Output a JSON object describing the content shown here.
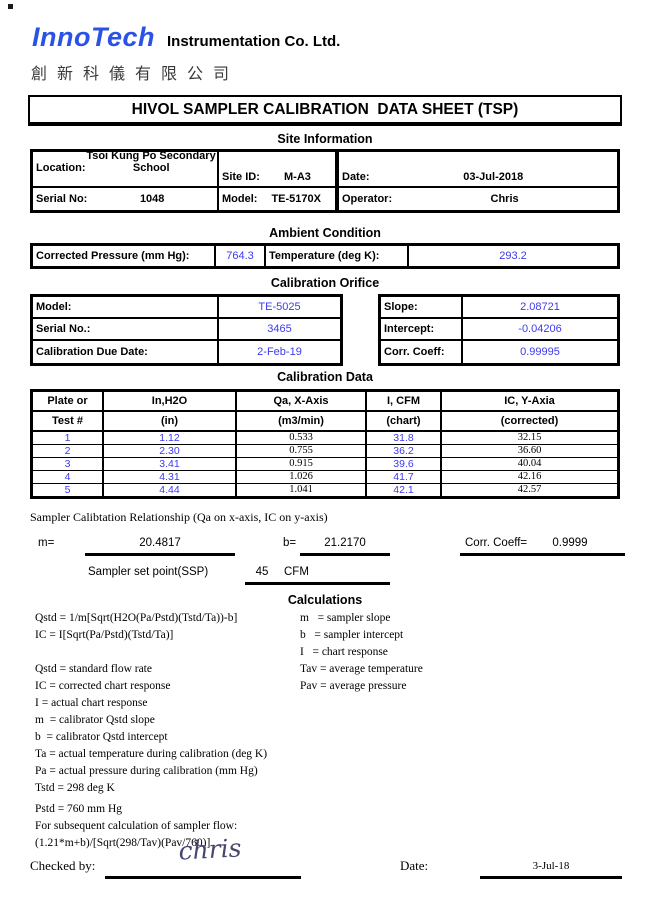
{
  "header": {
    "logo_text": "InnoTech",
    "company_name": "Instrumentation Co. Ltd.",
    "company_name_zh": "創新科儀有限公司",
    "sheet_title": "HIVOL SAMPLER CALIBRATION  DATA SHEET (TSP)"
  },
  "site_information": {
    "section_title": "Site Information",
    "location_label": "Location:",
    "location_value_line1": "Tsoi Kung Po Secondary",
    "location_value_line2": "School",
    "site_id_label": "Site ID:",
    "site_id_value": "M-A3",
    "date_label": "Date:",
    "date_value": "03-Jul-2018",
    "serial_no_label": "Serial No:",
    "serial_no_value": "1048",
    "model_label": "Model:",
    "model_value": "TE-5170X",
    "operator_label": "Operator:",
    "operator_value": "Chris"
  },
  "ambient_condition": {
    "section_title": "Ambient Condition",
    "pressure_label": "Corrected Pressure (mm Hg):",
    "pressure_value": "764.3",
    "temperature_label": "Temperature (deg K):",
    "temperature_value": "293.2"
  },
  "calibration_orifice": {
    "section_title": "Calibration Orifice",
    "model_label": "Model:",
    "model_value": "TE-5025",
    "serial_label": "Serial No.:",
    "serial_value": "3465",
    "due_date_label": "Calibration Due Date:",
    "due_date_value": "2-Feb-19",
    "slope_label": "Slope:",
    "slope_value": "2.08721",
    "intercept_label": "Intercept:",
    "intercept_value": "-0.04206",
    "corr_coeff_label": "Corr. Coeff:",
    "corr_coeff_value": "0.99995"
  },
  "calibration_data": {
    "section_title": "Calibration Data",
    "header_row1": [
      "Plate or",
      "In,H2O",
      "Qa, X-Axis",
      "I, CFM",
      "IC, Y-Axia"
    ],
    "header_row2": [
      "Test #",
      "(in)",
      "(m3/min)",
      "(chart)",
      "(corrected)"
    ],
    "rows": [
      {
        "test": "1",
        "in_h2o": "1.12",
        "qa": "0.533",
        "i_cfm": "31.8",
        "ic": "32.15"
      },
      {
        "test": "2",
        "in_h2o": "2.30",
        "qa": "0.755",
        "i_cfm": "36.2",
        "ic": "36.60"
      },
      {
        "test": "3",
        "in_h2o": "3.41",
        "qa": "0.915",
        "i_cfm": "39.6",
        "ic": "40.04"
      },
      {
        "test": "4",
        "in_h2o": "4.31",
        "qa": "1.026",
        "i_cfm": "41.7",
        "ic": "42.16"
      },
      {
        "test": "5",
        "in_h2o": "4.44",
        "qa": "1.041",
        "i_cfm": "42.1",
        "ic": "42.57"
      }
    ]
  },
  "relationship": {
    "title": "Sampler Calibtation Relationship (Qa on x-axis, IC on y-axis)",
    "m_label": "m=",
    "m_value": "20.4817",
    "b_label": "b=",
    "b_value": "21.2170",
    "corr_label": "Corr. Coeff=",
    "corr_value": "0.9999",
    "ssp_label": "Sampler set point(SSP)",
    "ssp_value": "45",
    "ssp_unit": "CFM"
  },
  "calculations": {
    "section_title": "Calculations",
    "left_lines": [
      "Qstd = 1/m[Sqrt(H2O(Pa/Pstd)(Tstd/Ta))-b]",
      "IC = I[Sqrt(Pa/Pstd)(Tstd/Ta)]",
      "",
      "Qstd = standard flow rate",
      "IC = corrected chart response",
      "I = actual chart response",
      "m  = calibrator Qstd slope",
      "b  = calibrator Qstd intercept",
      "Ta = actual temperature during calibration (deg K)",
      "Pa = actual pressure during calibration (mm Hg)",
      "Tstd = 298 deg K"
    ],
    "right_lines": [
      "m   = sampler slope",
      "b   = sampler intercept",
      "I   = chart response",
      "Tav = average temperature",
      "Pav = average pressure"
    ],
    "footer_lines": [
      "Pstd = 760 mm Hg",
      "For subsequent calculation of sampler flow:",
      "(1.21*m+b)/[Sqrt(298/Tav)(Pav/760)]"
    ]
  },
  "signoff": {
    "checked_by_label": "Checked by:",
    "signature": "chris",
    "date_label": "Date:",
    "date_value": "3-Jul-18"
  },
  "colors": {
    "logo_blue": "#2b52e6",
    "data_blue": "#3b3bee",
    "signature_ink": "#46466e"
  }
}
